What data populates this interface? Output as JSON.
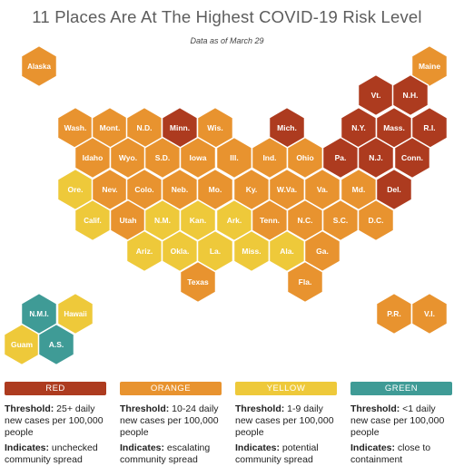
{
  "header": {
    "title": "11 Places Are At The Highest COVID-19 Risk Level",
    "subtitle": "Data as of March 29"
  },
  "colors": {
    "red": "#ad3b1f",
    "orange": "#e8932f",
    "yellow": "#eec93a",
    "green": "#3f9b96"
  },
  "states": [
    {
      "label": "Alaska",
      "level": "orange"
    },
    {
      "label": "Maine",
      "level": "orange"
    },
    {
      "label": "Vt.",
      "level": "red"
    },
    {
      "label": "N.H.",
      "level": "red"
    },
    {
      "label": "Wash.",
      "level": "orange"
    },
    {
      "label": "Mont.",
      "level": "orange"
    },
    {
      "label": "N.D.",
      "level": "orange"
    },
    {
      "label": "Minn.",
      "level": "red"
    },
    {
      "label": "Wis.",
      "level": "orange"
    },
    {
      "label": "Mich.",
      "level": "red"
    },
    {
      "label": "N.Y.",
      "level": "red"
    },
    {
      "label": "Mass.",
      "level": "red"
    },
    {
      "label": "R.I.",
      "level": "red"
    },
    {
      "label": "Idaho",
      "level": "orange"
    },
    {
      "label": "Wyo.",
      "level": "orange"
    },
    {
      "label": "S.D.",
      "level": "orange"
    },
    {
      "label": "Iowa",
      "level": "orange"
    },
    {
      "label": "Ill.",
      "level": "orange"
    },
    {
      "label": "Ind.",
      "level": "orange"
    },
    {
      "label": "Ohio",
      "level": "orange"
    },
    {
      "label": "Pa.",
      "level": "red"
    },
    {
      "label": "N.J.",
      "level": "red"
    },
    {
      "label": "Conn.",
      "level": "red"
    },
    {
      "label": "Ore.",
      "level": "yellow"
    },
    {
      "label": "Nev.",
      "level": "orange"
    },
    {
      "label": "Colo.",
      "level": "orange"
    },
    {
      "label": "Neb.",
      "level": "orange"
    },
    {
      "label": "Mo.",
      "level": "orange"
    },
    {
      "label": "Ky.",
      "level": "orange"
    },
    {
      "label": "W.Va.",
      "level": "orange"
    },
    {
      "label": "Va.",
      "level": "orange"
    },
    {
      "label": "Md.",
      "level": "orange"
    },
    {
      "label": "Del.",
      "level": "red"
    },
    {
      "label": "Calif.",
      "level": "yellow"
    },
    {
      "label": "Utah",
      "level": "orange"
    },
    {
      "label": "N.M.",
      "level": "yellow"
    },
    {
      "label": "Kan.",
      "level": "yellow"
    },
    {
      "label": "Ark.",
      "level": "yellow"
    },
    {
      "label": "Tenn.",
      "level": "orange"
    },
    {
      "label": "N.C.",
      "level": "orange"
    },
    {
      "label": "S.C.",
      "level": "orange"
    },
    {
      "label": "D.C.",
      "level": "orange"
    },
    {
      "label": "Ariz.",
      "level": "yellow"
    },
    {
      "label": "Okla.",
      "level": "yellow"
    },
    {
      "label": "La.",
      "level": "yellow"
    },
    {
      "label": "Miss.",
      "level": "yellow"
    },
    {
      "label": "Ala.",
      "level": "yellow"
    },
    {
      "label": "Ga.",
      "level": "orange"
    },
    {
      "label": "Texas",
      "level": "orange"
    },
    {
      "label": "Fla.",
      "level": "orange"
    },
    {
      "label": "N.M.I.",
      "level": "green"
    },
    {
      "label": "Hawaii",
      "level": "yellow"
    },
    {
      "label": "Guam",
      "level": "yellow"
    },
    {
      "label": "A.S.",
      "level": "green"
    },
    {
      "label": "P.R.",
      "level": "orange"
    },
    {
      "label": "V.I.",
      "level": "orange"
    }
  ],
  "legend": [
    {
      "key": "red",
      "label": "RED",
      "threshold_label": "Threshold:",
      "threshold": " 25+ daily new cases per 100,000 people",
      "indicates_label": "Indicates:",
      "indicates": " unchecked community spread"
    },
    {
      "key": "orange",
      "label": "ORANGE",
      "threshold_label": "Threshold:",
      "threshold": " 10-24 daily new cases per 100,000 people",
      "indicates_label": "Indicates:",
      "indicates": " escalating community spread"
    },
    {
      "key": "yellow",
      "label": "YELLOW",
      "threshold_label": "Threshold:",
      "threshold": " 1-9 daily new cases per 100,000 people",
      "indicates_label": "Indicates:",
      "indicates": " potential community spread"
    },
    {
      "key": "green",
      "label": "GREEN",
      "threshold_label": "Threshold:",
      "threshold": " <1 daily new case per 100,000 people",
      "indicates_label": "Indicates:",
      "indicates": " close to containment"
    }
  ]
}
